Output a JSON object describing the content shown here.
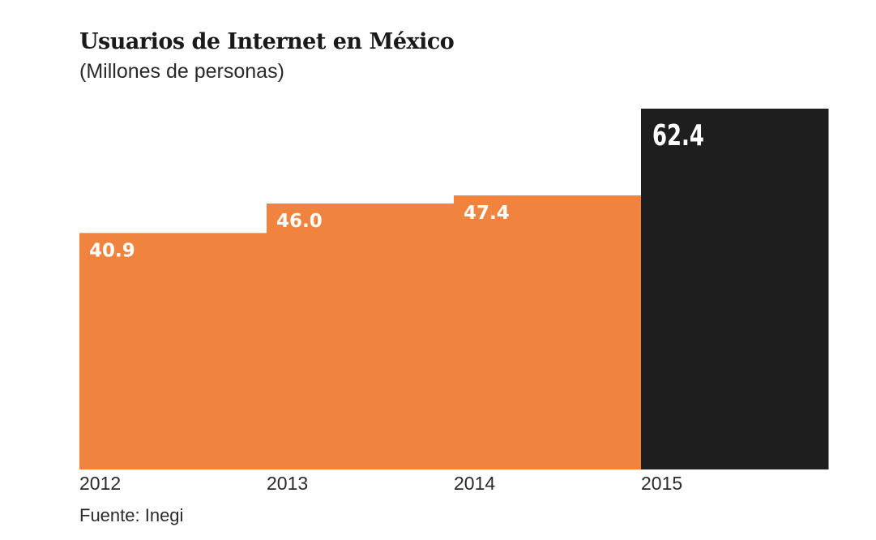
{
  "chart_data": {
    "type": "bar",
    "title": "Usuarios de Internet en México",
    "subtitle": "(Millones de personas)",
    "categories": [
      "2012",
      "2013",
      "2014",
      "2015"
    ],
    "values": [
      40.9,
      46.0,
      47.4,
      62.4
    ],
    "value_labels": [
      "40.9",
      "46.0",
      "47.4",
      "62.4"
    ],
    "colors": [
      "#F0843F",
      "#F0843F",
      "#F0843F",
      "#1E1E1E"
    ],
    "ylim": [
      0,
      62.4
    ],
    "grid": false,
    "source": "Fuente: Inegi"
  }
}
